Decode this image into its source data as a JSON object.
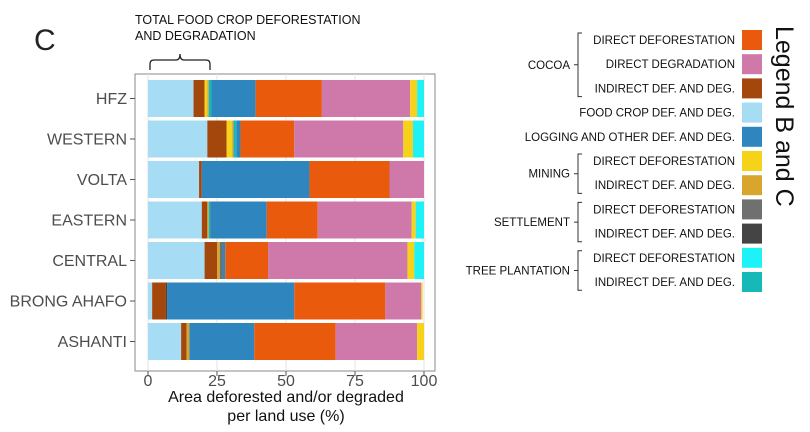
{
  "chart_data": {
    "type": "bar",
    "orientation": "horizontal",
    "stacked": true,
    "panel_label": "C",
    "annotation": [
      "TOTAL FOOD CROP DEFORESTATION",
      "AND DEGRADATION"
    ],
    "xlabel": [
      "Area deforested and/or degraded",
      "per land use (%)"
    ],
    "ylabel": "",
    "xlim": [
      0,
      100
    ],
    "xticks": [
      0,
      25,
      50,
      75,
      100
    ],
    "categories": [
      "HFZ",
      "WESTERN",
      "VOLTA",
      "EASTERN",
      "CENTRAL",
      "BRONG AHAFO",
      "ASHANTI"
    ],
    "series": [
      {
        "key": "food_crop",
        "color": "#a6dcf4",
        "values": [
          16.5,
          21.5,
          18.5,
          19.5,
          20.5,
          1.5,
          12.0
        ]
      },
      {
        "key": "cocoa_indirect",
        "color": "#a4470c",
        "values": [
          4.0,
          7.0,
          1.0,
          2.0,
          4.5,
          5.0,
          2.0
        ]
      },
      {
        "key": "mining_direct",
        "color": "#f7d21a",
        "values": [
          1.0,
          2.0,
          0.0,
          0.0,
          0.0,
          0.0,
          0.0
        ]
      },
      {
        "key": "mining_indirect",
        "color": "#d8a62c",
        "values": [
          0.5,
          0.5,
          0.0,
          0.5,
          1.0,
          0.0,
          1.0
        ]
      },
      {
        "key": "settlement_direct",
        "color": "#707070",
        "values": [
          0.0,
          0.0,
          0.0,
          0.0,
          1.0,
          0.0,
          0.0
        ]
      },
      {
        "key": "settlement_indirect",
        "color": "#444444",
        "values": [
          0.0,
          0.0,
          0.0,
          0.0,
          0.0,
          0.5,
          0.0
        ]
      },
      {
        "key": "tree_direct",
        "color": "#1ef2f6",
        "values": [
          0.0,
          0.0,
          0.0,
          0.0,
          0.0,
          0.0,
          0.0
        ]
      },
      {
        "key": "tree_indirect",
        "color": "#16b8b8",
        "values": [
          1.0,
          1.0,
          0.0,
          0.5,
          0.0,
          0.0,
          0.0
        ]
      },
      {
        "key": "logging_other",
        "color": "#2f86be",
        "values": [
          16.0,
          1.5,
          39.0,
          20.5,
          1.0,
          46.0,
          23.5
        ]
      },
      {
        "key": "cocoa_direct_def",
        "color": "#ea5a0d",
        "values": [
          24.0,
          19.5,
          29.0,
          18.5,
          15.5,
          33.0,
          29.5
        ]
      },
      {
        "key": "cocoa_direct_deg",
        "color": "#cf78aa",
        "values": [
          32.0,
          39.5,
          12.5,
          34.0,
          50.5,
          13.0,
          29.5
        ]
      },
      {
        "key": "mining_direct_2",
        "color": "#f7d21a",
        "values": [
          2.5,
          3.5,
          0.0,
          1.5,
          2.5,
          0.5,
          2.5
        ]
      },
      {
        "key": "tree_direct_2",
        "color": "#1ef2f6",
        "values": [
          2.5,
          4.0,
          0.0,
          3.0,
          3.5,
          0.0,
          0.0
        ]
      }
    ]
  },
  "legend": {
    "title": "Legend B and C",
    "groups": [
      {
        "label": "COCOA",
        "items": [
          {
            "label": "DIRECT DEFORESTATION",
            "color": "#ea5a0d"
          },
          {
            "label": "DIRECT DEGRADATION",
            "color": "#cf78aa"
          },
          {
            "label": "INDIRECT DEF. AND DEG.",
            "color": "#a4470c"
          }
        ]
      },
      {
        "label": "",
        "items": [
          {
            "label": "FOOD CROP DEF. AND DEG.",
            "color": "#a6dcf4"
          }
        ]
      },
      {
        "label": "",
        "items": [
          {
            "label": "LOGGING AND OTHER DEF. AND DEG.",
            "color": "#2f86be"
          }
        ]
      },
      {
        "label": "MINING",
        "items": [
          {
            "label": "DIRECT DEFORESTATION",
            "color": "#f7d21a"
          },
          {
            "label": "INDIRECT DEF. AND DEG.",
            "color": "#d8a62c"
          }
        ]
      },
      {
        "label": "SETTLEMENT",
        "items": [
          {
            "label": "DIRECT DEFORESTATION",
            "color": "#707070"
          },
          {
            "label": "INDIRECT DEF. AND DEG.",
            "color": "#444444"
          }
        ]
      },
      {
        "label": "TREE PLANTATION",
        "items": [
          {
            "label": "DIRECT DEFORESTATION",
            "color": "#1ef2f6"
          },
          {
            "label": "INDIRECT DEF. AND DEG.",
            "color": "#16b8b8"
          }
        ]
      }
    ]
  }
}
